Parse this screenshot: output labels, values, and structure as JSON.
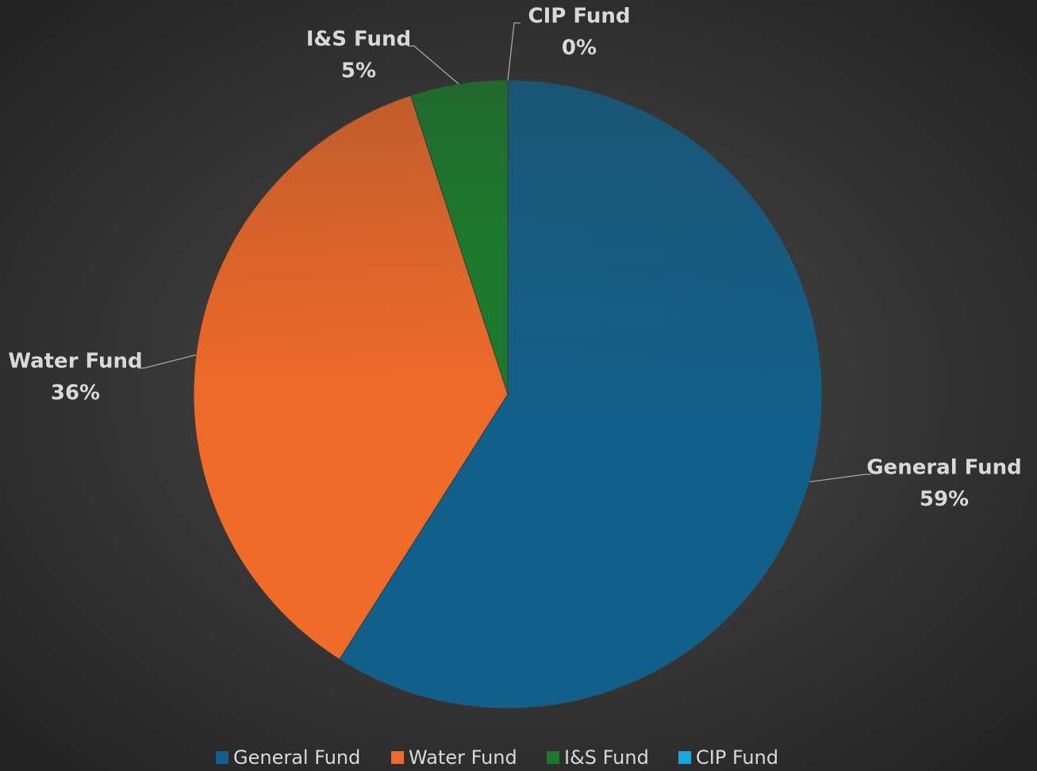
{
  "chart_data": {
    "type": "pie",
    "categories": [
      "General Fund",
      "Water Fund",
      "I&S Fund",
      "CIP Fund"
    ],
    "values": [
      59,
      36,
      5,
      0
    ],
    "value_labels": [
      "59%",
      "36%",
      "5%",
      "0%"
    ],
    "colors": [
      "#11608a",
      "#f06a28",
      "#1b7a2b",
      "#1aa6de"
    ],
    "legend": "bottom"
  }
}
